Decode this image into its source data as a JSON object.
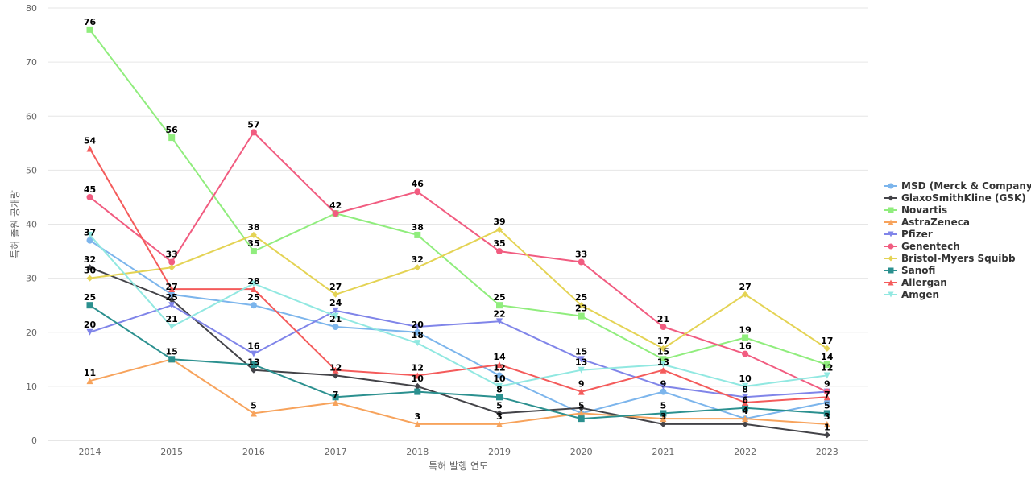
{
  "chart_data": {
    "type": "line",
    "xlabel": "특허 발행 연도",
    "ylabel": "특허 출원 공개량",
    "ylim": [
      0,
      80
    ],
    "yticks": [
      0,
      10,
      20,
      30,
      40,
      50,
      60,
      70,
      80
    ],
    "grid": true,
    "legend_position": "right",
    "categories": [
      "2014",
      "2015",
      "2016",
      "2017",
      "2018",
      "2019",
      "2020",
      "2021",
      "2022",
      "2023"
    ],
    "series": [
      {
        "name": "MSD (Merck & Company)",
        "color": "#7cb5ec",
        "marker": "circle",
        "values": [
          37,
          27,
          25,
          21,
          20,
          12,
          5,
          9,
          4,
          7
        ]
      },
      {
        "name": "GlaxoSmithKline (GSK)",
        "color": "#434348",
        "marker": "diamond",
        "values": [
          32,
          26,
          13,
          12,
          10,
          5,
          6,
          3,
          3,
          1
        ]
      },
      {
        "name": "Novartis",
        "color": "#90ed7d",
        "marker": "square",
        "values": [
          76,
          56,
          35,
          42,
          38,
          25,
          23,
          15,
          19,
          14
        ]
      },
      {
        "name": "AstraZeneca",
        "color": "#f7a35c",
        "marker": "triangle",
        "values": [
          11,
          15,
          5,
          7,
          3,
          3,
          5,
          4,
          4,
          3
        ]
      },
      {
        "name": "Pfizer",
        "color": "#8085e9",
        "marker": "triangle-down",
        "values": [
          20,
          25,
          16,
          24,
          21,
          22,
          15,
          10,
          8,
          9
        ]
      },
      {
        "name": "Genentech",
        "color": "#f15c80",
        "marker": "circle",
        "values": [
          45,
          33,
          57,
          42,
          46,
          35,
          33,
          21,
          16,
          9
        ]
      },
      {
        "name": "Bristol-Myers Squibb",
        "color": "#e4d354",
        "marker": "diamond",
        "values": [
          30,
          32,
          38,
          27,
          32,
          39,
          25,
          17,
          27,
          17
        ]
      },
      {
        "name": "Sanofi",
        "color": "#2b908f",
        "marker": "square",
        "values": [
          25,
          15,
          14,
          8,
          9,
          8,
          4,
          5,
          6,
          5
        ]
      },
      {
        "name": "Allergan",
        "color": "#f45b5b",
        "marker": "triangle",
        "values": [
          54,
          28,
          28,
          13,
          12,
          14,
          9,
          13,
          7,
          8
        ]
      },
      {
        "name": "Amgen",
        "color": "#91e8e1",
        "marker": "triangle-down",
        "values": [
          38,
          21,
          29,
          23,
          18,
          10,
          13,
          14,
          10,
          12
        ]
      }
    ],
    "data_labels": [
      {
        "x": 0,
        "y": 76,
        "text": "76"
      },
      {
        "x": 0,
        "y": 54,
        "text": "54"
      },
      {
        "x": 0,
        "y": 45,
        "text": "45"
      },
      {
        "x": 0,
        "y": 37,
        "text": "37"
      },
      {
        "x": 0,
        "y": 32,
        "text": "32"
      },
      {
        "x": 0,
        "y": 30,
        "text": "30"
      },
      {
        "x": 0,
        "y": 25,
        "text": "25"
      },
      {
        "x": 0,
        "y": 20,
        "text": "20"
      },
      {
        "x": 0,
        "y": 11,
        "text": "11"
      },
      {
        "x": 1,
        "y": 56,
        "text": "56"
      },
      {
        "x": 1,
        "y": 33,
        "text": "33"
      },
      {
        "x": 1,
        "y": 27,
        "text": "27"
      },
      {
        "x": 1,
        "y": 25,
        "text": "25"
      },
      {
        "x": 1,
        "y": 21,
        "text": "21"
      },
      {
        "x": 1,
        "y": 15,
        "text": "15"
      },
      {
        "x": 2,
        "y": 57,
        "text": "57"
      },
      {
        "x": 2,
        "y": 38,
        "text": "38"
      },
      {
        "x": 2,
        "y": 35,
        "text": "35"
      },
      {
        "x": 2,
        "y": 28,
        "text": "28"
      },
      {
        "x": 2,
        "y": 25,
        "text": "25"
      },
      {
        "x": 2,
        "y": 16,
        "text": "16"
      },
      {
        "x": 2,
        "y": 13,
        "text": "13"
      },
      {
        "x": 2,
        "y": 5,
        "text": "5"
      },
      {
        "x": 3,
        "y": 42,
        "text": "42"
      },
      {
        "x": 3,
        "y": 27,
        "text": "27"
      },
      {
        "x": 3,
        "y": 24,
        "text": "24"
      },
      {
        "x": 3,
        "y": 21,
        "text": "21"
      },
      {
        "x": 3,
        "y": 12,
        "text": "12"
      },
      {
        "x": 3,
        "y": 7,
        "text": "7"
      },
      {
        "x": 4,
        "y": 46,
        "text": "46"
      },
      {
        "x": 4,
        "y": 38,
        "text": "38"
      },
      {
        "x": 4,
        "y": 32,
        "text": "32"
      },
      {
        "x": 4,
        "y": 20,
        "text": "20"
      },
      {
        "x": 4,
        "y": 18,
        "text": "18"
      },
      {
        "x": 4,
        "y": 12,
        "text": "12"
      },
      {
        "x": 4,
        "y": 10,
        "text": "10"
      },
      {
        "x": 4,
        "y": 3,
        "text": "3"
      },
      {
        "x": 5,
        "y": 39,
        "text": "39"
      },
      {
        "x": 5,
        "y": 35,
        "text": "35"
      },
      {
        "x": 5,
        "y": 25,
        "text": "25"
      },
      {
        "x": 5,
        "y": 22,
        "text": "22"
      },
      {
        "x": 5,
        "y": 14,
        "text": "14"
      },
      {
        "x": 5,
        "y": 12,
        "text": "12"
      },
      {
        "x": 5,
        "y": 10,
        "text": "10"
      },
      {
        "x": 5,
        "y": 8,
        "text": "8"
      },
      {
        "x": 5,
        "y": 5,
        "text": "5"
      },
      {
        "x": 5,
        "y": 3,
        "text": "3"
      },
      {
        "x": 6,
        "y": 33,
        "text": "33"
      },
      {
        "x": 6,
        "y": 25,
        "text": "25"
      },
      {
        "x": 6,
        "y": 23,
        "text": "23"
      },
      {
        "x": 6,
        "y": 15,
        "text": "15"
      },
      {
        "x": 6,
        "y": 13,
        "text": "13"
      },
      {
        "x": 6,
        "y": 9,
        "text": "9"
      },
      {
        "x": 6,
        "y": 5,
        "text": "5"
      },
      {
        "x": 7,
        "y": 21,
        "text": "21"
      },
      {
        "x": 7,
        "y": 17,
        "text": "17"
      },
      {
        "x": 7,
        "y": 15,
        "text": "15"
      },
      {
        "x": 7,
        "y": 13,
        "text": "13"
      },
      {
        "x": 7,
        "y": 9,
        "text": "9"
      },
      {
        "x": 7,
        "y": 5,
        "text": "5"
      },
      {
        "x": 7,
        "y": 3,
        "text": "3"
      },
      {
        "x": 8,
        "y": 27,
        "text": "27"
      },
      {
        "x": 8,
        "y": 19,
        "text": "19"
      },
      {
        "x": 8,
        "y": 16,
        "text": "16"
      },
      {
        "x": 8,
        "y": 10,
        "text": "10"
      },
      {
        "x": 8,
        "y": 8,
        "text": "8"
      },
      {
        "x": 8,
        "y": 6,
        "text": "6"
      },
      {
        "x": 8,
        "y": 4,
        "text": "4"
      },
      {
        "x": 9,
        "y": 17,
        "text": "17"
      },
      {
        "x": 9,
        "y": 14,
        "text": "14"
      },
      {
        "x": 9,
        "y": 12,
        "text": "12"
      },
      {
        "x": 9,
        "y": 9,
        "text": "9"
      },
      {
        "x": 9,
        "y": 7,
        "text": "7"
      },
      {
        "x": 9,
        "y": 5,
        "text": "5"
      },
      {
        "x": 9,
        "y": 3,
        "text": "3"
      },
      {
        "x": 9,
        "y": 1,
        "text": "1"
      }
    ]
  }
}
